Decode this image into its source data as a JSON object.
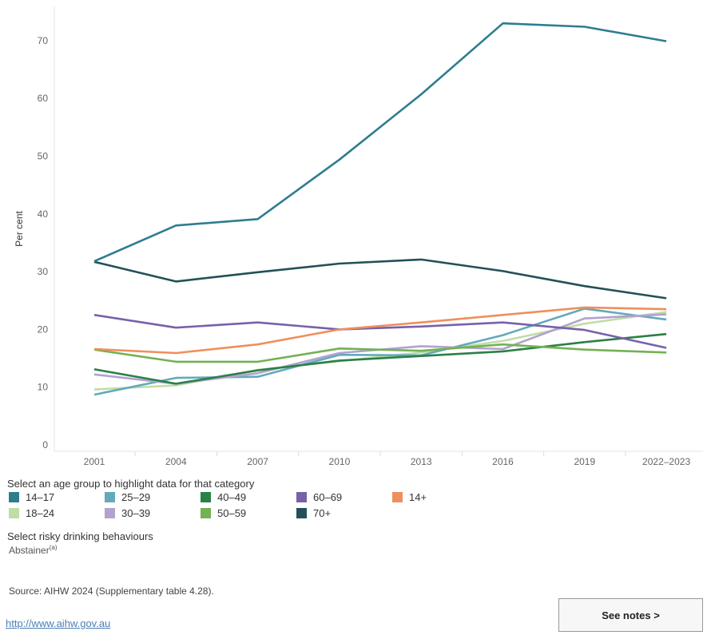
{
  "chart_data": {
    "type": "line",
    "ylabel": "Per cent",
    "xlabel": "",
    "categories": [
      "2001",
      "2004",
      "2007",
      "2010",
      "2013",
      "2016",
      "2019",
      "2022–2023"
    ],
    "ylim": [
      0,
      75
    ],
    "yticks": [
      0,
      10,
      20,
      30,
      40,
      50,
      60,
      70
    ],
    "grid": false,
    "series": [
      {
        "name": "14–17",
        "color": "#2e7d8f",
        "values": [
          31.8,
          38.0,
          39.1,
          49.4,
          60.7,
          73.0,
          72.4,
          69.9
        ]
      },
      {
        "name": "18–24",
        "color": "#c1dda6",
        "values": [
          9.6,
          10.3,
          13.0,
          14.5,
          16.0,
          18.0,
          21.0,
          23.0
        ]
      },
      {
        "name": "25–29",
        "color": "#62aabb",
        "values": [
          8.7,
          11.6,
          11.8,
          15.6,
          15.5,
          19.0,
          23.6,
          21.7
        ]
      },
      {
        "name": "30–39",
        "color": "#b1a2cf",
        "values": [
          12.2,
          10.6,
          12.4,
          15.9,
          17.1,
          16.6,
          21.9,
          22.6
        ]
      },
      {
        "name": "40–49",
        "color": "#2b8047",
        "values": [
          13.1,
          10.6,
          12.9,
          14.6,
          15.4,
          16.2,
          17.8,
          19.2
        ]
      },
      {
        "name": "50–59",
        "color": "#73b153",
        "values": [
          16.5,
          14.4,
          14.4,
          16.7,
          16.3,
          17.4,
          16.5,
          16.0
        ]
      },
      {
        "name": "60–69",
        "color": "#7761aa",
        "values": [
          22.5,
          20.3,
          21.2,
          20.0,
          20.5,
          21.2,
          19.9,
          16.8
        ]
      },
      {
        "name": "70+",
        "color": "#235058",
        "values": [
          31.7,
          28.3,
          29.9,
          31.4,
          32.1,
          30.1,
          27.5,
          25.4
        ]
      },
      {
        "name": "14+",
        "color": "#ef8f5d",
        "values": [
          16.6,
          15.9,
          17.4,
          20.0,
          21.2,
          22.5,
          23.8,
          23.5
        ]
      }
    ]
  },
  "legend": {
    "title": "Select an age group to highlight data for that category",
    "items": [
      {
        "label": "14–17",
        "color": "#2e7d8f"
      },
      {
        "label": "25–29",
        "color": "#62aabb"
      },
      {
        "label": "40–49",
        "color": "#2b8047"
      },
      {
        "label": "60–69",
        "color": "#7761aa"
      },
      {
        "label": "14+",
        "color": "#ef8f5d"
      },
      {
        "label": "18–24",
        "color": "#c1dda6"
      },
      {
        "label": "30–39",
        "color": "#b1a2cf"
      },
      {
        "label": "50–59",
        "color": "#73b153"
      },
      {
        "label": "70+",
        "color": "#235058"
      }
    ]
  },
  "filter": {
    "title": "Select risky drinking behaviours",
    "value": "Abstainer",
    "value_note": "(a)"
  },
  "source": "Source: AIHW 2024 (Supplementary table 4.28).",
  "link": "http://www.aihw.gov.au",
  "notes_button": "See notes >"
}
